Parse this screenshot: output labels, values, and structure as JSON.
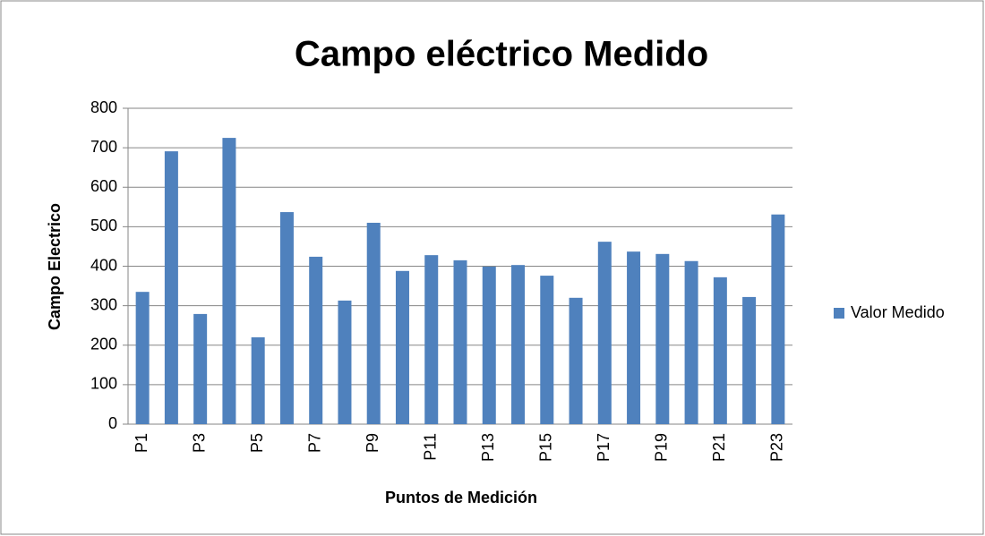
{
  "chart_data": {
    "type": "bar",
    "title": "Campo eléctrico Medido",
    "x_label": "Puntos de Medición",
    "y_label": "Campo Electrico",
    "categories": [
      "P1",
      null,
      "P3",
      null,
      "P5",
      null,
      "P7",
      null,
      "P9",
      null,
      "P11",
      null,
      "P13",
      null,
      "P15",
      null,
      "P17",
      null,
      "P19",
      null,
      "P21",
      null,
      "P23"
    ],
    "series": [
      {
        "name": "Valor Medido",
        "color": "#4f81bd",
        "values": [
          335,
          691,
          279,
          725,
          220,
          537,
          424,
          313,
          510,
          388,
          428,
          415,
          399,
          403,
          376,
          320,
          462,
          437,
          431,
          413,
          372,
          322,
          531
        ]
      }
    ],
    "ylim": [
      0,
      800
    ],
    "yticks": [
      0,
      100,
      200,
      300,
      400,
      500,
      600,
      700,
      800
    ],
    "grid": true,
    "legend": "right"
  }
}
